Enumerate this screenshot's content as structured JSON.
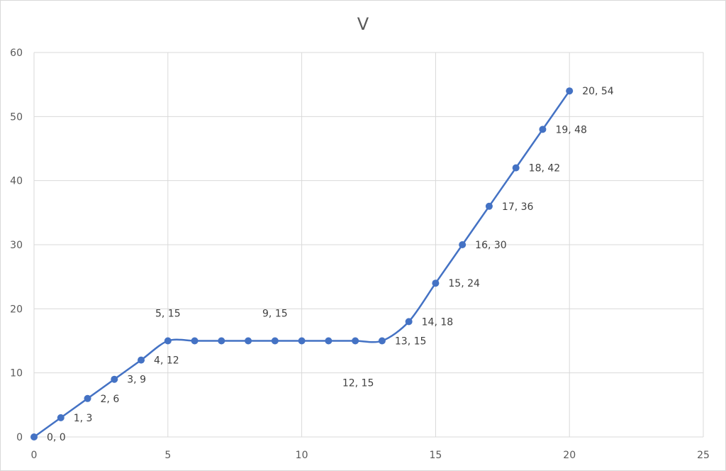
{
  "chart_data": {
    "type": "scatter",
    "title": "V",
    "xlabel": "",
    "ylabel": "",
    "xlim": [
      0,
      25
    ],
    "ylim": [
      0,
      60
    ],
    "xticks": [
      0,
      5,
      10,
      15,
      20,
      25
    ],
    "yticks": [
      0,
      10,
      20,
      30,
      40,
      50,
      60
    ],
    "grid": true,
    "smooth_line": true,
    "series_color": "#4472c4",
    "series": [
      {
        "x": [
          0,
          1,
          2,
          3,
          4,
          5,
          6,
          7,
          8,
          9,
          10,
          11,
          12,
          13,
          14,
          15,
          16,
          17,
          18,
          19,
          20
        ],
        "y": [
          0,
          3,
          6,
          9,
          12,
          15,
          15,
          15,
          15,
          15,
          15,
          15,
          15,
          15,
          18,
          24,
          30,
          36,
          42,
          48,
          54
        ]
      }
    ],
    "data_labels": [
      {
        "x": 0,
        "y": 0,
        "text": "0, 0",
        "placement": "right"
      },
      {
        "x": 1,
        "y": 3,
        "text": "1, 3",
        "placement": "right"
      },
      {
        "x": 2,
        "y": 6,
        "text": "2, 6",
        "placement": "right"
      },
      {
        "x": 3,
        "y": 9,
        "text": "3, 9",
        "placement": "right"
      },
      {
        "x": 4,
        "y": 12,
        "text": "4, 12",
        "placement": "right"
      },
      {
        "x": 5,
        "y": 15,
        "text": "5, 15",
        "placement": "above"
      },
      {
        "x": 9,
        "y": 15,
        "text": "9, 15",
        "placement": "above"
      },
      {
        "x": 12,
        "y": 15,
        "text": "12, 15",
        "placement": "below"
      },
      {
        "x": 13,
        "y": 15,
        "text": "13, 15",
        "placement": "right"
      },
      {
        "x": 14,
        "y": 18,
        "text": "14, 18",
        "placement": "right"
      },
      {
        "x": 15,
        "y": 24,
        "text": "15, 24",
        "placement": "right"
      },
      {
        "x": 16,
        "y": 30,
        "text": "16, 30",
        "placement": "right"
      },
      {
        "x": 17,
        "y": 36,
        "text": "17, 36",
        "placement": "right"
      },
      {
        "x": 18,
        "y": 42,
        "text": "18, 42",
        "placement": "right"
      },
      {
        "x": 19,
        "y": 48,
        "text": "19, 48",
        "placement": "right"
      },
      {
        "x": 20,
        "y": 54,
        "text": "20, 54",
        "placement": "right"
      }
    ]
  }
}
